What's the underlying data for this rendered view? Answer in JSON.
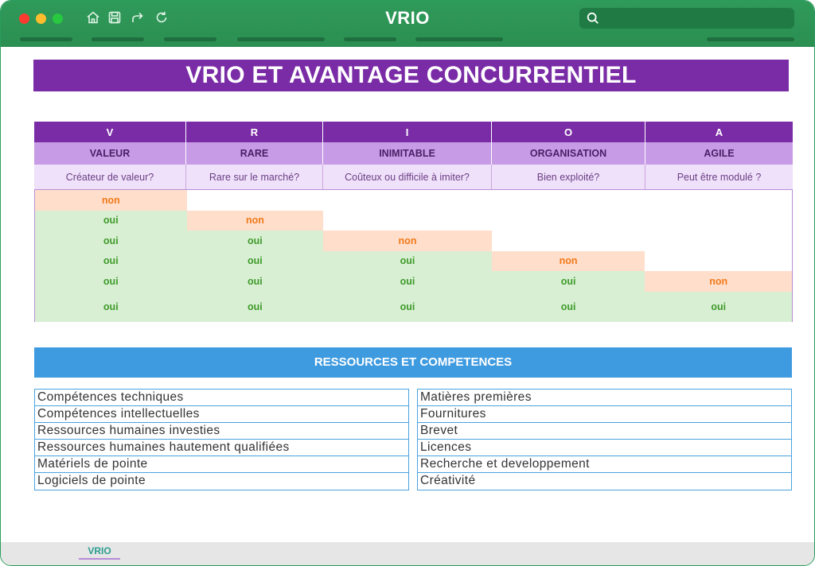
{
  "window": {
    "title": "VRIO"
  },
  "toolbar": {
    "icons": [
      "home-icon",
      "save-icon",
      "share-icon",
      "refresh-icon"
    ],
    "search_placeholder": ""
  },
  "banner": {
    "title": "VRIO ET AVANTAGE CONCURRENTIEL"
  },
  "vrio": {
    "letters": [
      "V",
      "R",
      "I",
      "O",
      "A"
    ],
    "names": [
      "VALEUR",
      "RARE",
      "INIMITABLE",
      "ORGANISATION",
      "AGILE"
    ],
    "questions": [
      "Créateur de valeur?",
      "Rare sur le marché?",
      "Coûteux ou difficile à imiter?",
      "Bien exploité?",
      "Peut être modulé ?"
    ],
    "rows": [
      [
        "non",
        "",
        "",
        "",
        ""
      ],
      [
        "oui",
        "non",
        "",
        "",
        ""
      ],
      [
        "oui",
        "oui",
        "non",
        "",
        ""
      ],
      [
        "oui",
        "oui",
        "oui",
        "non",
        ""
      ],
      [
        "oui",
        "oui",
        "oui",
        "oui",
        "non"
      ],
      [
        "oui",
        "oui",
        "oui",
        "oui",
        "oui"
      ]
    ]
  },
  "resources": {
    "title": "RESSOURCES ET COMPETENCES",
    "left": [
      "Compétences techniques",
      "Compétences intellectuelles",
      "Ressources humaines investies",
      "Ressources humaines hautement qualifiées",
      "Matériels de pointe",
      "Logiciels de pointe"
    ],
    "right": [
      "Matières premières",
      "Fournitures",
      "Brevet",
      "Licences",
      "Recherche et developpement",
      "Créativité"
    ]
  },
  "footer": {
    "sheet_tab": "VRIO"
  },
  "colors": {
    "titlebar": "#2f9a59",
    "banner": "#7a2ca6",
    "oui_bg": "#d8efd3",
    "oui_text": "#3f9b2b",
    "non_bg": "#ffdecb",
    "non_text": "#f07a1a",
    "resources_banner": "#3f9be0"
  }
}
